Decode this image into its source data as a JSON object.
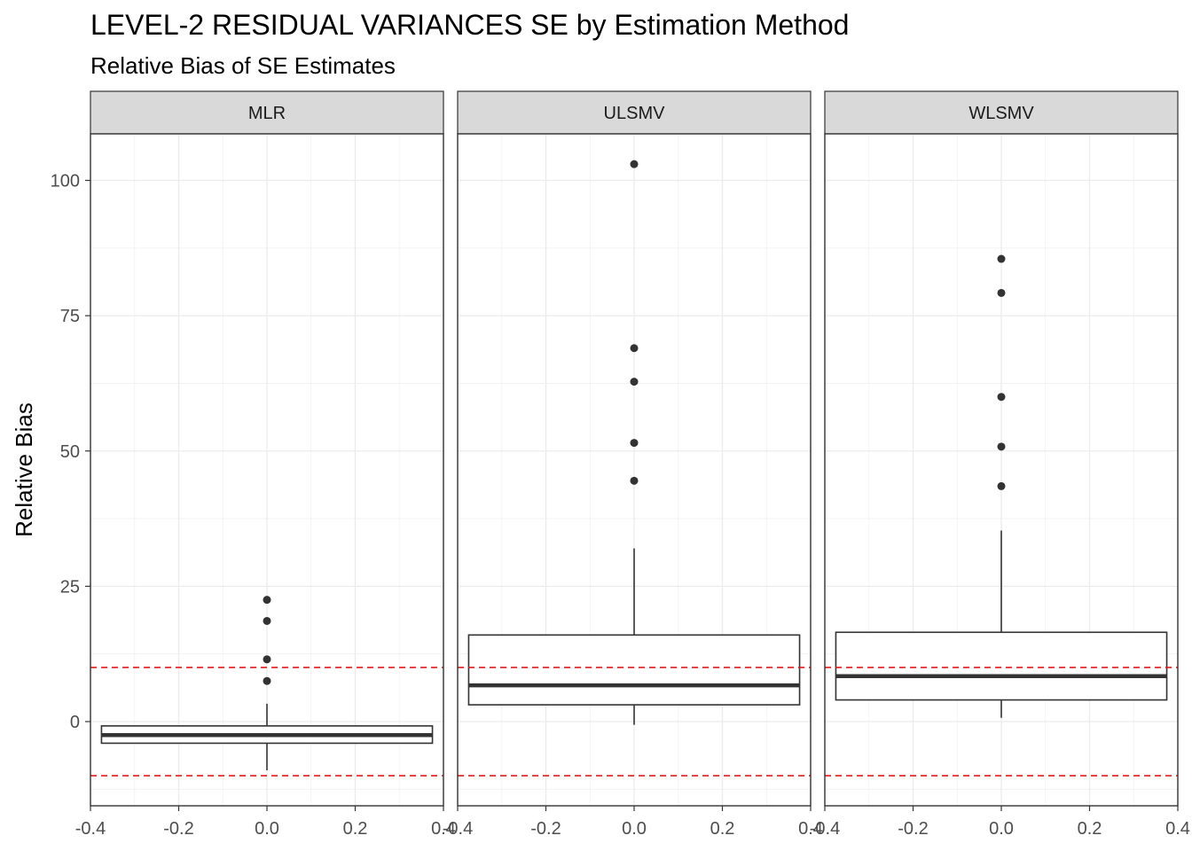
{
  "chart_data": {
    "type": "box",
    "title": "LEVEL-2 RESIDUAL VARIANCES SE by Estimation Method",
    "subtitle": "Relative Bias of SE Estimates",
    "ylabel": "Relative Bias",
    "xlabel": "",
    "xlim": [
      -0.4,
      0.4
    ],
    "ylim": [
      -15.5,
      108
    ],
    "x_ticks": [
      -0.4,
      -0.2,
      0.0,
      0.2,
      0.4
    ],
    "x_tick_labels": [
      "-0.4",
      "-0.2",
      "0.0",
      "0.2",
      "0.4"
    ],
    "y_ticks": [
      0,
      25,
      50,
      75,
      100
    ],
    "y_tick_labels": [
      "0",
      "25",
      "50",
      "75",
      "100"
    ],
    "reference_lines": [
      10,
      -10
    ],
    "reference_line_color": "#e41a1c",
    "grid": true,
    "panels": [
      {
        "facet": "MLR",
        "box": {
          "lower_whisker": -9,
          "q1": -4,
          "median": -2.5,
          "q3": -0.8,
          "upper_whisker": 3.3
        },
        "outliers": [
          22.5,
          18.6,
          11.5,
          7.5
        ]
      },
      {
        "facet": "ULSMV",
        "box": {
          "lower_whisker": -0.6,
          "q1": 3.1,
          "median": 6.7,
          "q3": 16.0,
          "upper_whisker": 32.0
        },
        "outliers": [
          103.0,
          69.0,
          62.8,
          51.5,
          44.5
        ]
      },
      {
        "facet": "WLSMV",
        "box": {
          "lower_whisker": 0.7,
          "q1": 4.0,
          "median": 8.4,
          "q3": 16.5,
          "upper_whisker": 35.3
        },
        "outliers": [
          85.5,
          79.2,
          60.0,
          50.8,
          43.5
        ]
      }
    ]
  }
}
